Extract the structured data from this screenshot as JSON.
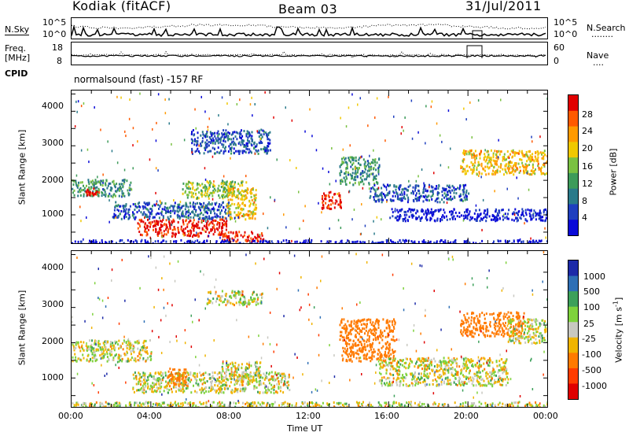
{
  "header": {
    "station": "Kodiak (fitACF)",
    "beam": "Beam 03",
    "date": "31/Jul/2011"
  },
  "top_panel": {
    "left_label": "N.Sky",
    "right_label": "N.Search",
    "right_dots": "........",
    "left_ticks": [
      "10^5",
      "10^0"
    ],
    "right_ticks": [
      "10^5",
      "10^0"
    ]
  },
  "freq_panel": {
    "left_label_1": "Freq.",
    "left_label_2": "[MHz]",
    "left_ticks": [
      "18",
      "8"
    ],
    "right_label": "Nave",
    "right_dots": "....",
    "right_ticks": [
      "60",
      "0"
    ]
  },
  "cpid_panel": {
    "label": "CPID",
    "text": "normalsound (fast) -157 RF"
  },
  "x_axis": {
    "title": "Time UT",
    "ticks": [
      "00:00",
      "04:00",
      "08:00",
      "12:00",
      "16:00",
      "20:00",
      "00:00"
    ]
  },
  "power_panel": {
    "ylabel": "Slant Range [km]",
    "yticks": [
      "4000",
      "3000",
      "2000",
      "1000"
    ],
    "colorbar_label": "Power [dB]",
    "colorbar_ticks": [
      "28",
      "24",
      "20",
      "16",
      "12",
      "8",
      "4"
    ],
    "colors": [
      "#e10000",
      "#ff5a00",
      "#ff9a00",
      "#f0c800",
      "#7ac142",
      "#3d9b5a",
      "#2a7a8a",
      "#1f3fbf",
      "#0a0ad8"
    ]
  },
  "velocity_panel": {
    "ylabel": "Slant Range [km]",
    "yticks": [
      "4000",
      "3000",
      "2000",
      "1000"
    ],
    "colorbar_label": "Velocity [m s",
    "colorbar_sup": "-1",
    "colorbar_label_end": "]",
    "colorbar_ticks": [
      "1000",
      "500",
      "100",
      "25",
      "-25",
      "-100",
      "-500",
      "-1000"
    ],
    "colors": [
      "#1c2aa8",
      "#2e6fb5",
      "#3ca05a",
      "#7ed23c",
      "#c8c8c0",
      "#f0b400",
      "#ff7a00",
      "#ff3c00",
      "#e00000"
    ]
  },
  "chart_data": {
    "type": "heatmap",
    "title": "Kodiak (fitACF) Beam 03 31/Jul/2011",
    "xlabel": "Time UT",
    "ylabel": "Slant Range [km]",
    "x_ticks": [
      "00:00",
      "04:00",
      "08:00",
      "12:00",
      "16:00",
      "20:00",
      "00:00"
    ],
    "x_range_hours": [
      0,
      24
    ],
    "y_range_km": [
      180,
      4600
    ],
    "y_ticks_km": [
      1000,
      2000,
      3000,
      4000
    ],
    "panels": [
      {
        "name": "Power [dB]",
        "colorbar_ticks": [
          4,
          8,
          12,
          16,
          20,
          24,
          28
        ],
        "blobs": [
          {
            "t0": 0.0,
            "t1": 3.0,
            "r0": 1550,
            "r1": 2050,
            "level": 12
          },
          {
            "t0": 0.7,
            "t1": 1.4,
            "r0": 1600,
            "r1": 1800,
            "level": 28
          },
          {
            "t0": 3.3,
            "t1": 7.8,
            "r0": 400,
            "r1": 900,
            "level": 28
          },
          {
            "t0": 2.0,
            "t1": 8.0,
            "r0": 900,
            "r1": 1400,
            "level": 8
          },
          {
            "t0": 5.5,
            "t1": 8.8,
            "r0": 1500,
            "r1": 2000,
            "level": 16
          },
          {
            "t0": 7.8,
            "t1": 9.3,
            "r0": 900,
            "r1": 1800,
            "level": 20
          },
          {
            "t0": 7.5,
            "t1": 9.7,
            "r0": 250,
            "r1": 550,
            "level": 28
          },
          {
            "t0": 6.0,
            "t1": 10.0,
            "r0": 2800,
            "r1": 3500,
            "level": 8
          },
          {
            "t0": 12.6,
            "t1": 13.6,
            "r0": 1200,
            "r1": 1700,
            "level": 28
          },
          {
            "t0": 13.5,
            "t1": 15.5,
            "r0": 1900,
            "r1": 2700,
            "level": 12
          },
          {
            "t0": 15.0,
            "t1": 20.0,
            "r0": 1400,
            "r1": 1900,
            "level": 8
          },
          {
            "t0": 16.0,
            "t1": 24.0,
            "r0": 850,
            "r1": 1200,
            "level": 4
          },
          {
            "t0": 19.6,
            "t1": 24.0,
            "r0": 2200,
            "r1": 2900,
            "level": 20
          },
          {
            "t0": 0.0,
            "t1": 24.0,
            "r0": 190,
            "r1": 300,
            "level": 4
          }
        ]
      },
      {
        "name": "Velocity [m s-1]",
        "colorbar_ticks": [
          -1000,
          -500,
          -100,
          -25,
          25,
          100,
          500,
          1000
        ],
        "blobs": [
          {
            "t0": 0.0,
            "t1": 4.0,
            "r0": 1500,
            "r1": 2100,
            "level": 0
          },
          {
            "t0": 3.0,
            "t1": 11.0,
            "r0": 600,
            "r1": 1200,
            "level": 0
          },
          {
            "t0": 4.8,
            "t1": 5.8,
            "r0": 800,
            "r1": 1300,
            "level": -300
          },
          {
            "t0": 7.5,
            "t1": 9.5,
            "r0": 900,
            "r1": 1500,
            "level": 0
          },
          {
            "t0": 6.8,
            "t1": 9.6,
            "r0": 3100,
            "r1": 3500,
            "level": 0
          },
          {
            "t0": 13.5,
            "t1": 16.3,
            "r0": 1500,
            "r1": 2700,
            "level": -300
          },
          {
            "t0": 15.5,
            "t1": 22.0,
            "r0": 800,
            "r1": 1600,
            "level": 0
          },
          {
            "t0": 19.6,
            "t1": 22.8,
            "r0": 2200,
            "r1": 2900,
            "level": -300
          },
          {
            "t0": 22.0,
            "t1": 24.0,
            "r0": 2000,
            "r1": 2700,
            "level": 0
          },
          {
            "t0": 0.0,
            "t1": 24.0,
            "r0": 190,
            "r1": 350,
            "level": 0
          }
        ]
      }
    ]
  }
}
